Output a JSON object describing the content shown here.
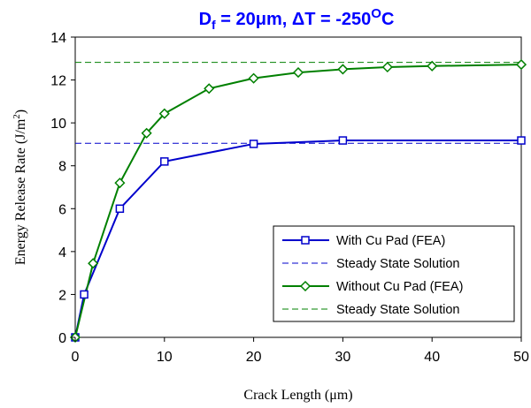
{
  "chart_data": {
    "type": "line",
    "title": {
      "prefix": "D",
      "prefix_sub": "f",
      "rest": " = 20μm, ΔT = -250",
      "degree_sup": "O",
      "unit": "C"
    },
    "xlabel": "Crack Length (μm)",
    "ylabel": {
      "text": "Energy Release Rate (J/m",
      "sup": "2",
      "close": ")"
    },
    "xlim": [
      0,
      50
    ],
    "ylim": [
      0,
      14
    ],
    "xticks": [
      "0",
      "10",
      "20",
      "30",
      "40",
      "50"
    ],
    "yticks": [
      "0",
      "2",
      "4",
      "6",
      "8",
      "10",
      "12",
      "14"
    ],
    "grid": false,
    "legend_position": "bottom-right",
    "series": [
      {
        "name": "With Cu Pad (FEA)",
        "color": "#0000cc",
        "style": "solid",
        "marker": "square",
        "x": [
          0,
          1,
          5,
          10,
          20,
          30,
          50
        ],
        "y": [
          0,
          2.0,
          6.0,
          8.2,
          9.02,
          9.18,
          9.18
        ]
      },
      {
        "name": "Steady State Solution",
        "color": "#0000cc",
        "style": "dashed",
        "marker": "none",
        "x": [
          0,
          50
        ],
        "y": [
          9.05,
          9.05
        ]
      },
      {
        "name": "Without Cu Pad (FEA)",
        "color": "#008000",
        "style": "solid",
        "marker": "diamond",
        "x": [
          0,
          2,
          5,
          8,
          10,
          15,
          20,
          25,
          30,
          35,
          40,
          50
        ],
        "y": [
          0,
          3.45,
          7.2,
          9.52,
          10.43,
          11.6,
          12.08,
          12.35,
          12.5,
          12.6,
          12.65,
          12.72
        ]
      },
      {
        "name": "Steady State Solution",
        "color": "#008000",
        "style": "dashed",
        "marker": "none",
        "x": [
          0,
          50
        ],
        "y": [
          12.82,
          12.82
        ]
      }
    ]
  }
}
